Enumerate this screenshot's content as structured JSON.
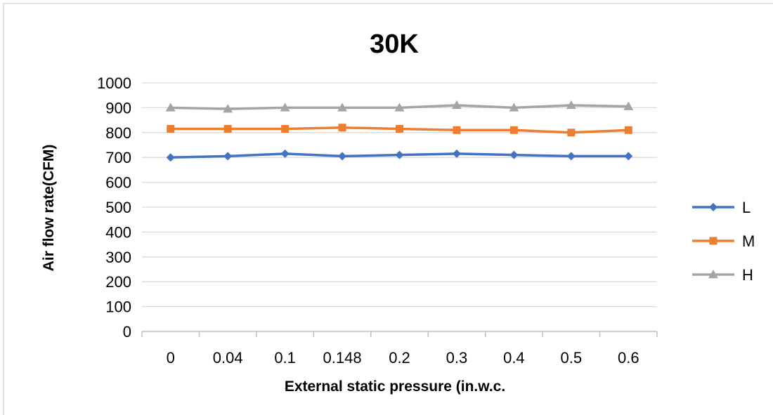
{
  "chart_data": {
    "type": "line",
    "title": "30K",
    "xlabel": "External static pressure (in.w.c.",
    "ylabel": "Air flow rate(CFM)",
    "categories": [
      "0",
      "0.04",
      "0.1",
      "0.148",
      "0.2",
      "0.3",
      "0.4",
      "0.5",
      "0.6"
    ],
    "ylim": [
      0,
      1000
    ],
    "yticks": [
      "0",
      "100",
      "200",
      "300",
      "400",
      "500",
      "600",
      "700",
      "800",
      "900",
      "1000"
    ],
    "grid": true,
    "legend_position": "right",
    "series": [
      {
        "name": "L",
        "color": "#4472C4",
        "marker": "diamond",
        "values": [
          700,
          705,
          715,
          705,
          710,
          715,
          710,
          705,
          705
        ]
      },
      {
        "name": "M",
        "color": "#ED7D31",
        "marker": "square",
        "values": [
          815,
          815,
          815,
          820,
          815,
          810,
          810,
          800,
          810
        ]
      },
      {
        "name": "H",
        "color": "#A5A5A5",
        "marker": "triangle",
        "values": [
          900,
          895,
          900,
          900,
          900,
          910,
          900,
          910,
          905
        ]
      }
    ]
  }
}
